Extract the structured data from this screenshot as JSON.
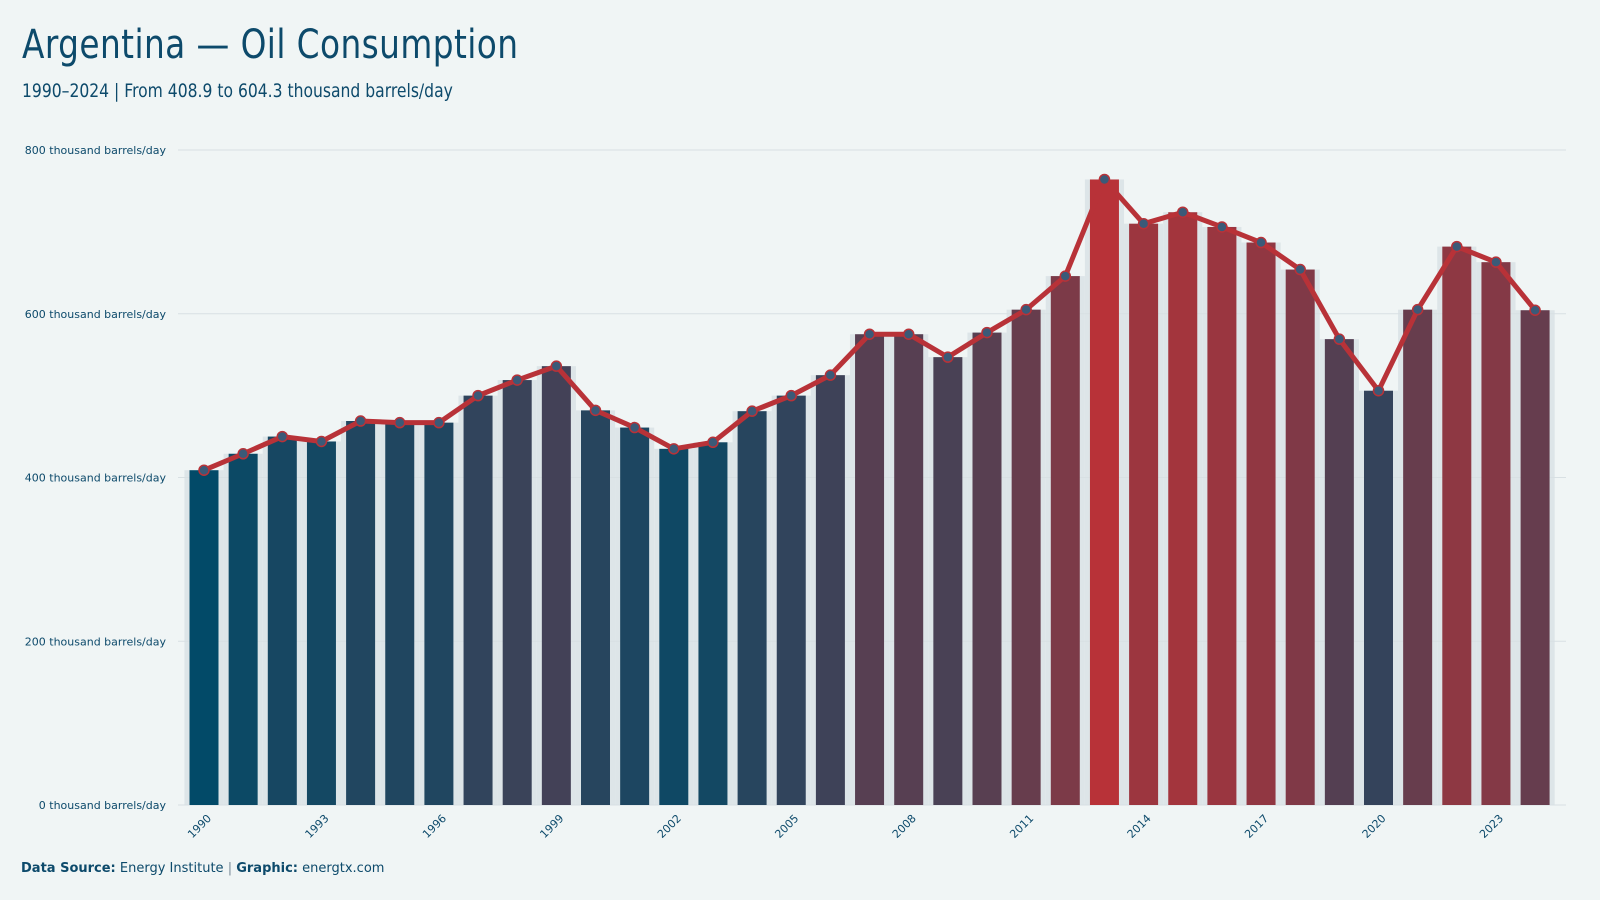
{
  "header": {
    "title": "Argentina — Oil Consumption",
    "subtitle": "1990–2024 | From 408.9 to 604.3 thousand barrels/day"
  },
  "footer": {
    "source_label": "Data Source:",
    "source_value": "Energy Institute",
    "separator": "|",
    "graphic_label": "Graphic:",
    "graphic_value": "energtx.com"
  },
  "colors": {
    "low": "#024a68",
    "high": "#b83238",
    "line": "#b83238",
    "marker": "#3b5a78",
    "gridline": "#d8e0e3",
    "band": "#dde5e8",
    "tick_text": "#0d4a6b"
  },
  "chart_data": {
    "type": "bar",
    "unit": "thousand barrels/day",
    "ylim": [
      0,
      800
    ],
    "yticks": [
      0,
      200,
      400,
      600,
      800
    ],
    "ytick_labels": [
      "0 thousand barrels/day",
      "200 thousand barrels/day",
      "400 thousand barrels/day",
      "600 thousand barrels/day",
      "800 thousand barrels/day"
    ],
    "xtick_labels": [
      "1990",
      "1993",
      "1996",
      "1999",
      "2002",
      "2005",
      "2008",
      "2011",
      "2014",
      "2017",
      "2020",
      "2023"
    ],
    "grid": true,
    "categories": [
      1990,
      1991,
      1992,
      1993,
      1994,
      1995,
      1996,
      1997,
      1998,
      1999,
      2000,
      2001,
      2002,
      2003,
      2004,
      2005,
      2006,
      2007,
      2008,
      2009,
      2010,
      2011,
      2012,
      2013,
      2014,
      2015,
      2016,
      2017,
      2018,
      2019,
      2020,
      2021,
      2022,
      2023,
      2024
    ],
    "values": [
      408.9,
      429,
      450,
      444,
      469,
      467,
      467,
      500,
      519,
      536,
      482,
      461,
      435,
      443,
      481,
      500,
      525,
      575,
      575,
      547,
      577,
      605,
      646,
      764,
      710,
      724,
      706,
      687,
      654,
      569,
      506,
      605,
      682,
      663,
      604.3
    ],
    "overlay": "line with circle markers"
  }
}
